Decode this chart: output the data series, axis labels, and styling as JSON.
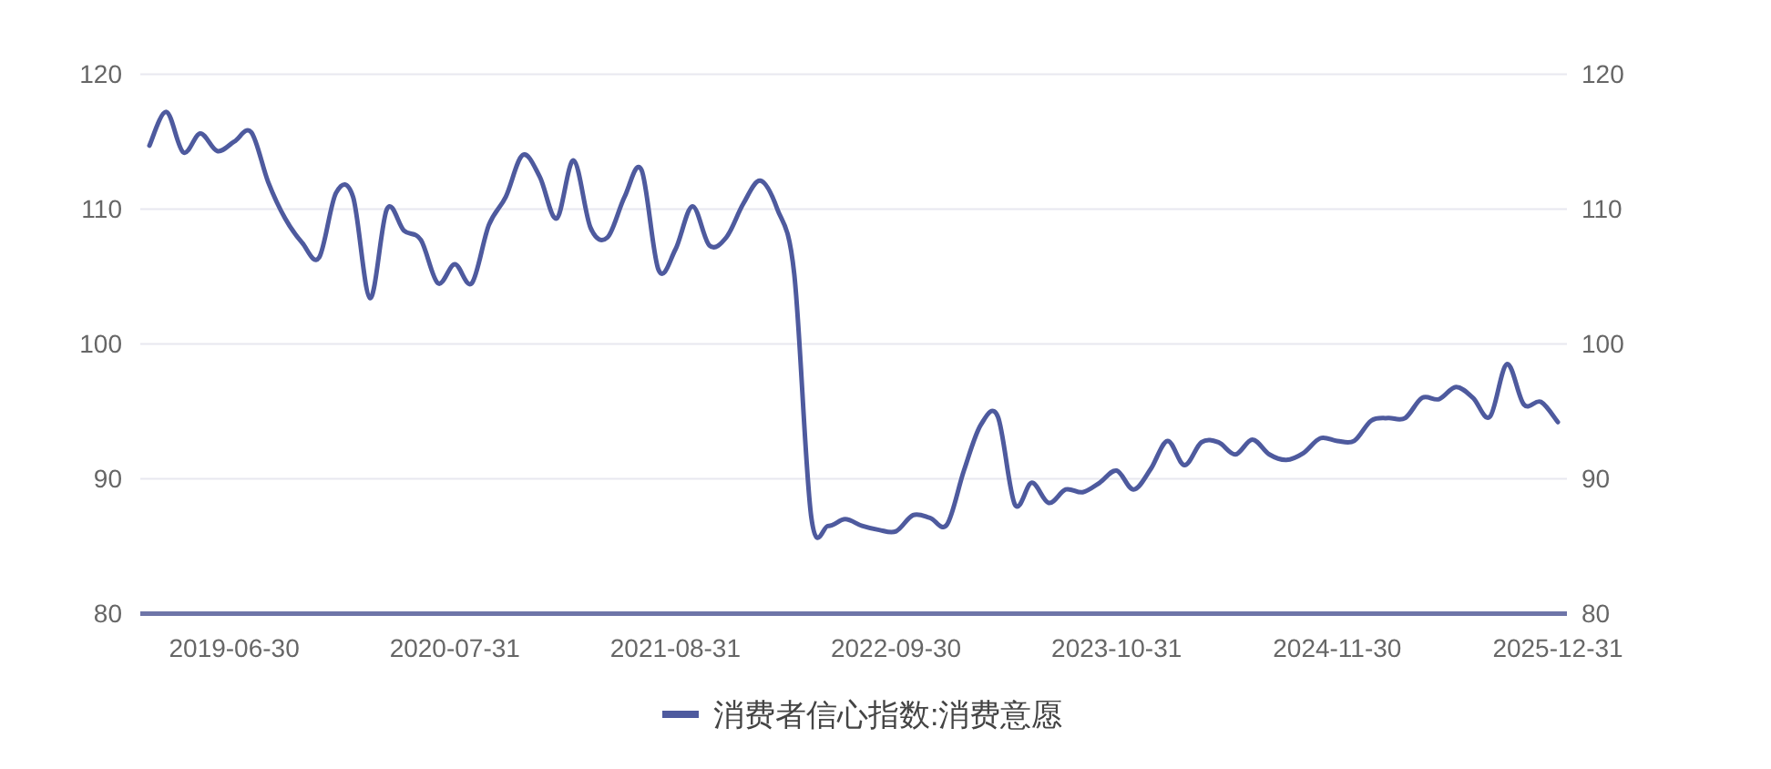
{
  "chart_data": {
    "type": "line",
    "categories": [
      null,
      null,
      null,
      null,
      null,
      "2019-06-30",
      null,
      null,
      null,
      null,
      null,
      null,
      null,
      null,
      null,
      null,
      null,
      null,
      "2020-07-31",
      null,
      null,
      null,
      null,
      null,
      null,
      null,
      null,
      null,
      null,
      null,
      null,
      "2021-08-31",
      null,
      null,
      null,
      null,
      null,
      null,
      null,
      null,
      null,
      null,
      null,
      null,
      "2022-09-30",
      null,
      null,
      null,
      null,
      null,
      null,
      null,
      null,
      null,
      null,
      null,
      null,
      "2023-10-31",
      null,
      null,
      null,
      null,
      null,
      null,
      null,
      null,
      null,
      null,
      null,
      null,
      "2024-11-30",
      null,
      null,
      null,
      null,
      null,
      null,
      null,
      null,
      null,
      null,
      null,
      null,
      "2025-12-31"
    ],
    "series": [
      {
        "name": "消费者信心指数:消费意愿",
        "color": "#4e5a9e",
        "values": [
          114.7,
          117.2,
          114.2,
          115.6,
          114.3,
          115.0,
          115.7,
          112.0,
          109.3,
          107.5,
          106.4,
          111.2,
          110.9,
          103.4,
          110.0,
          108.4,
          107.7,
          104.5,
          105.9,
          104.5,
          108.8,
          110.9,
          114.0,
          112.4,
          109.3,
          113.6,
          108.6,
          107.9,
          110.9,
          112.9,
          105.5,
          107.0,
          110.2,
          107.3,
          107.9,
          110.4,
          112.1,
          110.0,
          105.2,
          87.2,
          86.5,
          87.0,
          86.5,
          86.2,
          86.1,
          87.3,
          87.1,
          86.6,
          90.6,
          94.0,
          94.6,
          88.1,
          89.7,
          88.2,
          89.2,
          89.0,
          89.7,
          90.6,
          89.2,
          90.7,
          92.8,
          91.0,
          92.7,
          92.7,
          91.8,
          92.9,
          91.8,
          91.4,
          91.9,
          93.0,
          92.8,
          92.8,
          94.3,
          94.5,
          94.5,
          96.0,
          95.9,
          96.8,
          96.0,
          94.6,
          98.5,
          95.5,
          95.7,
          94.2
        ]
      }
    ],
    "ylim": [
      80,
      120
    ],
    "yticks": [
      80,
      90,
      100,
      110,
      120
    ],
    "y2lim": [
      80,
      120
    ],
    "y2ticks": [
      80,
      90,
      100,
      110,
      120
    ],
    "grid": "y",
    "legend": "bottom"
  }
}
